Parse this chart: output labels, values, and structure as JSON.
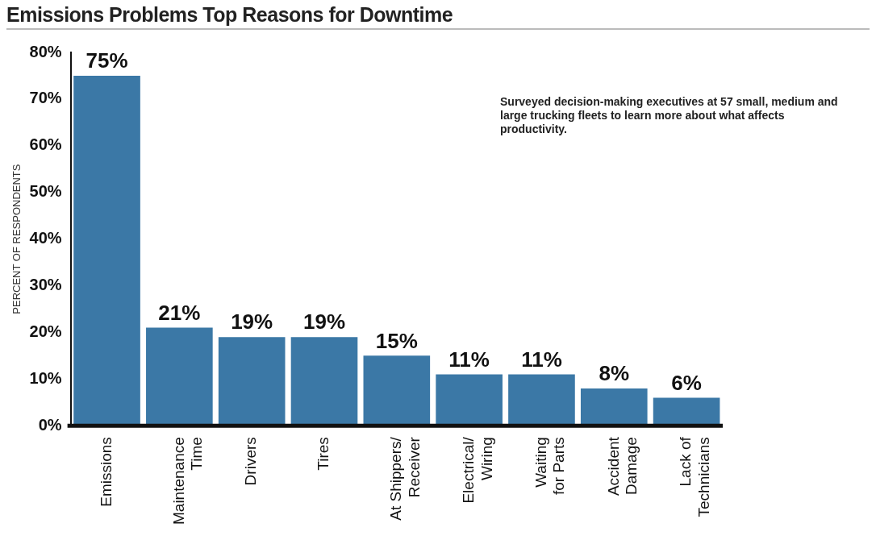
{
  "chart_data": {
    "type": "bar",
    "title": "Emissions Problems Top Reasons for Downtime",
    "ylabel": "PERCENT OF RESPONDENTS",
    "categories": [
      "Emissions",
      "Maintenance\nTime",
      "Drivers",
      "Tires",
      "At Shippers/\nReceiver",
      "Electrical/\nWiring",
      "Waiting\nfor Parts",
      "Accident\nDamage",
      "Lack of\nTechnicians"
    ],
    "values": [
      75,
      21,
      19,
      19,
      15,
      11,
      11,
      8,
      6
    ],
    "value_labels": [
      "75%",
      "21%",
      "19%",
      "19%",
      "15%",
      "11%",
      "11%",
      "8%",
      "6%"
    ],
    "color": "#3b78a6",
    "ylim": [
      0,
      80
    ],
    "yticks": [
      {
        "value": 0,
        "label": "0%"
      },
      {
        "value": 10,
        "label": "10%"
      },
      {
        "value": 20,
        "label": "20%"
      },
      {
        "value": 30,
        "label": "30%"
      },
      {
        "value": 40,
        "label": "40%"
      },
      {
        "value": 50,
        "label": "50%"
      },
      {
        "value": 60,
        "label": "60%"
      },
      {
        "value": 70,
        "label": "70%"
      },
      {
        "value": 80,
        "label": "80%"
      }
    ],
    "annotations": [
      "Surveyed decision-making executives at 57 small, medium and large trucking fleets to learn more about what affects productivity."
    ],
    "grid": false,
    "legend": false
  }
}
